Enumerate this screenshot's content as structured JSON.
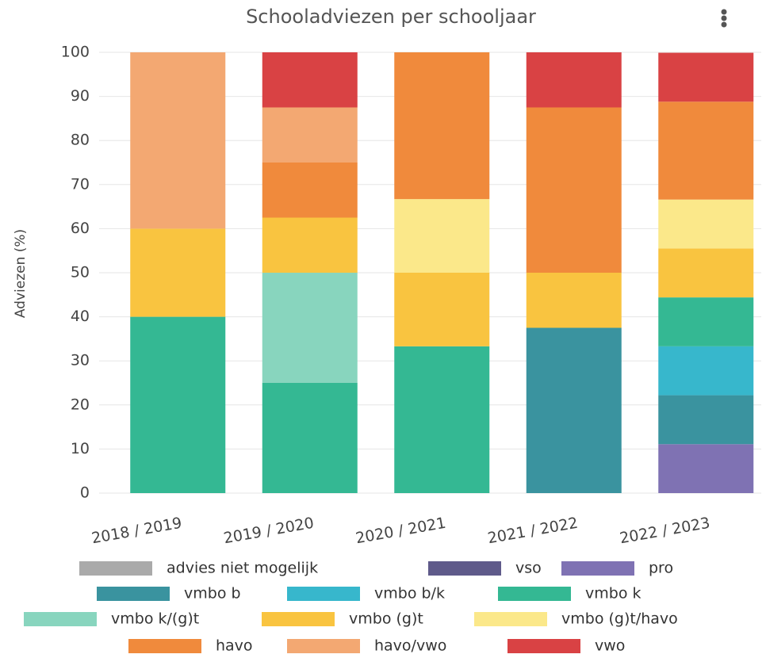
{
  "chart_data": {
    "type": "stacked_bar",
    "title": "Schooladviezen per schooljaar",
    "y_label": "Adviezen (%)",
    "categories": [
      "2018 / 2019",
      "2019 / 2020",
      "2020 / 2021",
      "2021 / 2022",
      "2022 / 2023"
    ],
    "ylim": [
      0,
      100
    ],
    "yticks": [
      0,
      10,
      20,
      30,
      40,
      50,
      60,
      70,
      80,
      90,
      100
    ],
    "grid": true,
    "series": [
      {
        "name": "advies niet mogelijk",
        "color": "#aaaaaa",
        "values": [
          0,
          0,
          0,
          0,
          0
        ]
      },
      {
        "name": "vso",
        "color": "#5f5a8a",
        "values": [
          0,
          0,
          0,
          0,
          0
        ]
      },
      {
        "name": "pro",
        "color": "#7f72b3",
        "values": [
          0,
          0,
          0,
          0,
          11.1
        ]
      },
      {
        "name": "vmbo b",
        "color": "#3a939f",
        "values": [
          0,
          0,
          0,
          37.5,
          11.1
        ]
      },
      {
        "name": "vmbo b/k",
        "color": "#37b7cc",
        "values": [
          0,
          0,
          0,
          0,
          11.1
        ]
      },
      {
        "name": "vmbo k",
        "color": "#34b893",
        "values": [
          40,
          25,
          33.3,
          0,
          11.1
        ]
      },
      {
        "name": "vmbo k/(g)t",
        "color": "#88d5be",
        "values": [
          0,
          25,
          0,
          0,
          0
        ]
      },
      {
        "name": "vmbo (g)t",
        "color": "#f9c440",
        "values": [
          20,
          12.5,
          16.7,
          12.5,
          11.1
        ]
      },
      {
        "name": "vmbo (g)t/havo",
        "color": "#fbe88a",
        "values": [
          0,
          0,
          16.7,
          0,
          11.1
        ]
      },
      {
        "name": "havo",
        "color": "#f08a3c",
        "values": [
          0,
          12.5,
          33.3,
          37.5,
          22.2
        ]
      },
      {
        "name": "havo/vwo",
        "color": "#f3a872",
        "values": [
          40,
          12.5,
          0,
          0,
          0
        ]
      },
      {
        "name": "vwo",
        "color": "#d94244",
        "values": [
          0,
          12.5,
          0,
          12.5,
          11.1
        ]
      }
    ]
  }
}
